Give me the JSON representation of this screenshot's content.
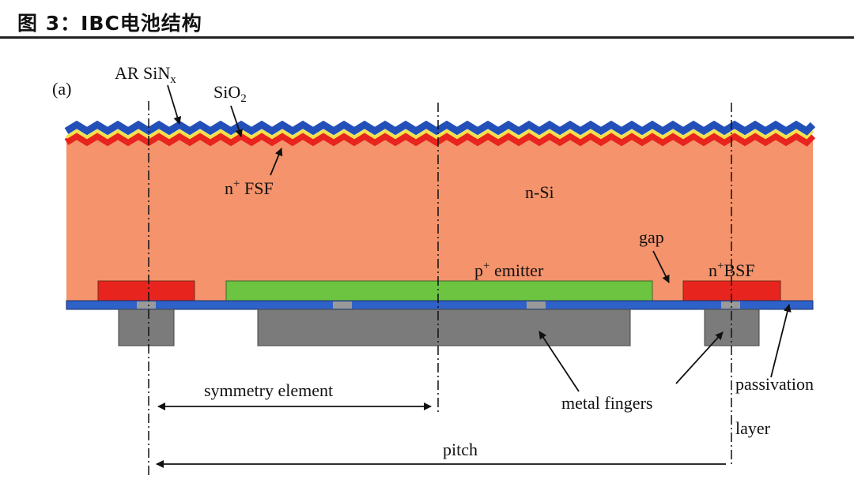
{
  "figure_title": "图 3：IBC电池结构",
  "labels": {
    "panel": "(a)",
    "ar": "AR SiN",
    "ar_sub": "x",
    "sio": "SiO",
    "sio_sub": "2",
    "fsf_n": "n",
    "fsf_sup": "+",
    "fsf": " FSF",
    "nsi": "n-Si",
    "gap": "gap",
    "emit_p": "p",
    "emit_sup": "+",
    "emit": " emitter",
    "bsf_n": "n",
    "bsf_sup": "+",
    "bsf": "BSF",
    "symmetry": "symmetry element",
    "metal": "metal fingers",
    "passivation": "passivation",
    "layer": "layer",
    "pitch": "pitch"
  },
  "colors": {
    "silicon": "#f4936c",
    "arc": "#2350b8",
    "sio2": "#f4e04a",
    "fsf": "#e8241e",
    "emitter": "#6cc440",
    "bsf": "#e8241e",
    "passivation": "#2f62c8",
    "metal": "#7b7b7b"
  }
}
